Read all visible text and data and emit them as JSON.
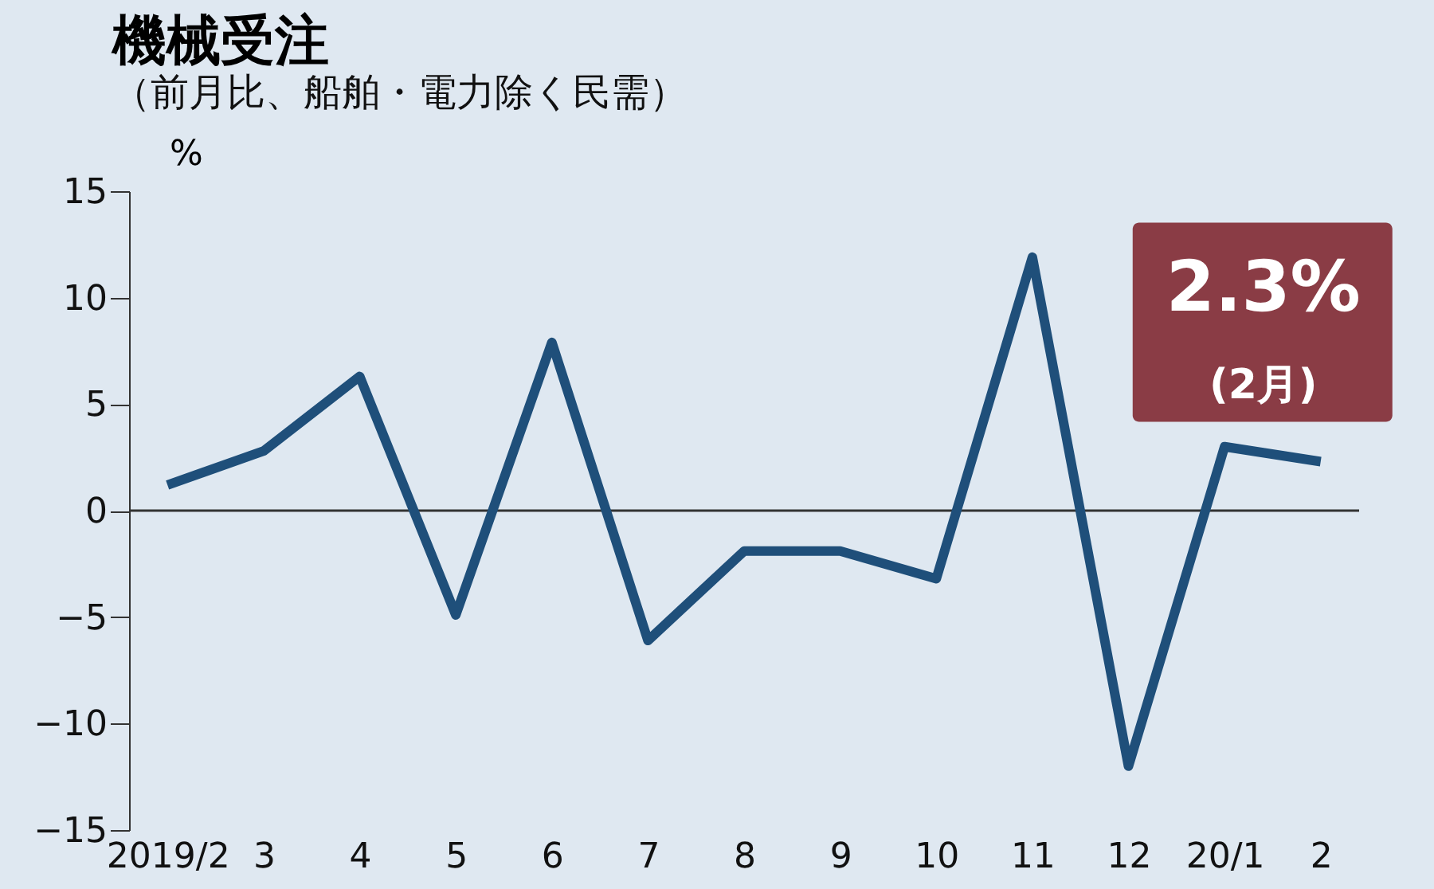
{
  "chart_data": {
    "type": "line",
    "title": "機械受注",
    "subtitle": "（前月比、船舶・電力除く民需）",
    "ylabel": "%",
    "categories": [
      "2019/2",
      "3",
      "4",
      "5",
      "6",
      "7",
      "8",
      "9",
      "10",
      "11",
      "12",
      "20/1",
      "2"
    ],
    "series": [
      {
        "color": "#1f4f7a",
        "values": [
          1.2,
          2.8,
          6.3,
          -4.9,
          7.9,
          -6.1,
          -1.9,
          -1.9,
          -3.2,
          11.9,
          -12.0,
          3.0,
          2.3
        ]
      }
    ],
    "ylim": [
      -15,
      15
    ],
    "yticks": [
      -15,
      -10,
      -5,
      0,
      5,
      10,
      15
    ],
    "ref_lines": [
      {
        "axis": "y",
        "value": 0,
        "color": "#333333"
      }
    ],
    "annotations": [
      {
        "text": "2.3%",
        "x": "2",
        "y": 2.3
      },
      {
        "text": "(2月)",
        "x": "2",
        "y": 2.3
      }
    ],
    "grid": false,
    "marker": "none",
    "line_style": "solid"
  }
}
